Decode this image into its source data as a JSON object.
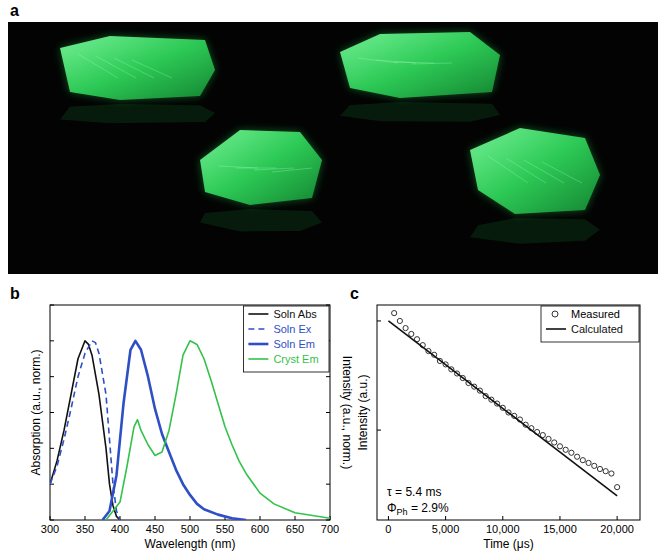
{
  "photo": {
    "label": "a"
  },
  "chart_data": [
    {
      "type": "line",
      "title": "b",
      "x_label": "Wavelength (nm)",
      "y_label": "Absorption (a.u., norm.)",
      "y2_label": "Intensity (a.u., norm.)",
      "xlim": [
        300,
        700
      ],
      "xticks": [
        300,
        350,
        400,
        450,
        500,
        550,
        600,
        650,
        700
      ],
      "ylim": [
        0,
        1.2
      ],
      "yticks": [
        0,
        0.2,
        0.4,
        0.6,
        0.8,
        1.0,
        1.2
      ],
      "y2lim": [
        0,
        1.2
      ],
      "y2ticks": [
        0,
        0.2,
        0.4,
        0.6,
        0.8,
        1.0,
        1.2
      ],
      "tick_labels": "x",
      "legend": "upper right",
      "series": [
        {
          "name": "Soln Abs",
          "color": "#111111",
          "line_style": "solid",
          "x": [
            300,
            310,
            320,
            330,
            340,
            350,
            355,
            360,
            370,
            380,
            385,
            390,
            395,
            400
          ],
          "values": [
            0.2,
            0.33,
            0.5,
            0.7,
            0.9,
            1.0,
            0.98,
            0.92,
            0.7,
            0.4,
            0.2,
            0.08,
            0.02,
            0
          ]
        },
        {
          "name": "Soln Ex",
          "color": "#2f4fc4",
          "line_style": "dashed",
          "x": [
            300,
            310,
            320,
            330,
            340,
            350,
            360,
            365,
            370,
            380,
            385,
            390,
            395,
            400
          ],
          "values": [
            0.2,
            0.3,
            0.45,
            0.62,
            0.8,
            0.93,
            1.0,
            0.99,
            0.93,
            0.7,
            0.45,
            0.2,
            0.05,
            0
          ]
        },
        {
          "name": "Soln Em",
          "color": "#2f4fc4",
          "line_style": "thick",
          "axis": "y2",
          "x": [
            375,
            385,
            395,
            405,
            415,
            422,
            430,
            440,
            450,
            460,
            470,
            480,
            490,
            500,
            510,
            520,
            540,
            560,
            580
          ],
          "values": [
            0,
            0.05,
            0.25,
            0.65,
            0.95,
            1.0,
            0.95,
            0.8,
            0.62,
            0.48,
            0.38,
            0.28,
            0.2,
            0.14,
            0.09,
            0.06,
            0.03,
            0.01,
            0
          ]
        },
        {
          "name": "Cryst Em",
          "color": "#33c24a",
          "line_style": "solid",
          "axis": "y2",
          "x": [
            380,
            400,
            410,
            420,
            425,
            430,
            440,
            450,
            460,
            470,
            480,
            490,
            500,
            510,
            520,
            530,
            540,
            550,
            560,
            570,
            580,
            600,
            620,
            650,
            700
          ],
          "values": [
            0,
            0.1,
            0.3,
            0.52,
            0.56,
            0.5,
            0.42,
            0.36,
            0.38,
            0.5,
            0.7,
            0.92,
            1.0,
            0.98,
            0.9,
            0.78,
            0.65,
            0.52,
            0.42,
            0.33,
            0.26,
            0.15,
            0.09,
            0.04,
            0.01
          ]
        }
      ]
    },
    {
      "type": "line",
      "title": "c",
      "x_label": "Time (μs)",
      "y_label": "Intensity (a.u.)",
      "xlim": [
        -1000,
        22000
      ],
      "xticks": [
        0,
        {
          "value": 5000,
          "label": "5,000"
        },
        {
          "value": 10000,
          "label": "10,000"
        },
        {
          "value": 15000,
          "label": "15,000"
        },
        {
          "value": 20000,
          "label": "20,000"
        }
      ],
      "ylim": [
        0.015,
        1.4
      ],
      "yticks": [
        0.1,
        1
      ],
      "log": "y",
      "tick_labels": "x",
      "legend": "upper right",
      "annotations": [
        {
          "text": "τ = 5.4 ms"
        },
        {
          "text": "Φ",
          "subscript": "Ph",
          "suffix": " = 2.9%"
        }
      ],
      "series": [
        {
          "name": "Measured",
          "type": "scatter",
          "marker": "circle",
          "color": "#333333",
          "x": [
            500,
            1000,
            1500,
            2000,
            2500,
            3000,
            3500,
            4000,
            4500,
            5000,
            5500,
            6000,
            6500,
            7000,
            7500,
            8000,
            8500,
            9000,
            9500,
            10000,
            10500,
            11000,
            11500,
            12000,
            12500,
            13000,
            13500,
            14000,
            14500,
            15000,
            15500,
            16000,
            16500,
            17000,
            17500,
            18000,
            18500,
            19000,
            19500,
            20000
          ],
          "values": [
            1.18,
            1.0,
            0.86,
            0.76,
            0.68,
            0.6,
            0.53,
            0.49,
            0.43,
            0.4,
            0.36,
            0.33,
            0.3,
            0.27,
            0.25,
            0.23,
            0.205,
            0.19,
            0.175,
            0.16,
            0.145,
            0.135,
            0.125,
            0.112,
            0.104,
            0.096,
            0.09,
            0.083,
            0.077,
            0.071,
            0.066,
            0.062,
            0.057,
            0.053,
            0.05,
            0.047,
            0.044,
            0.042,
            0.04,
            0.03
          ]
        },
        {
          "name": "Calculated",
          "type": "line",
          "line_style": "solid",
          "color": "#111111",
          "x": [
            0,
            20000
          ],
          "values": [
            1.0,
            0.025
          ]
        }
      ]
    }
  ]
}
